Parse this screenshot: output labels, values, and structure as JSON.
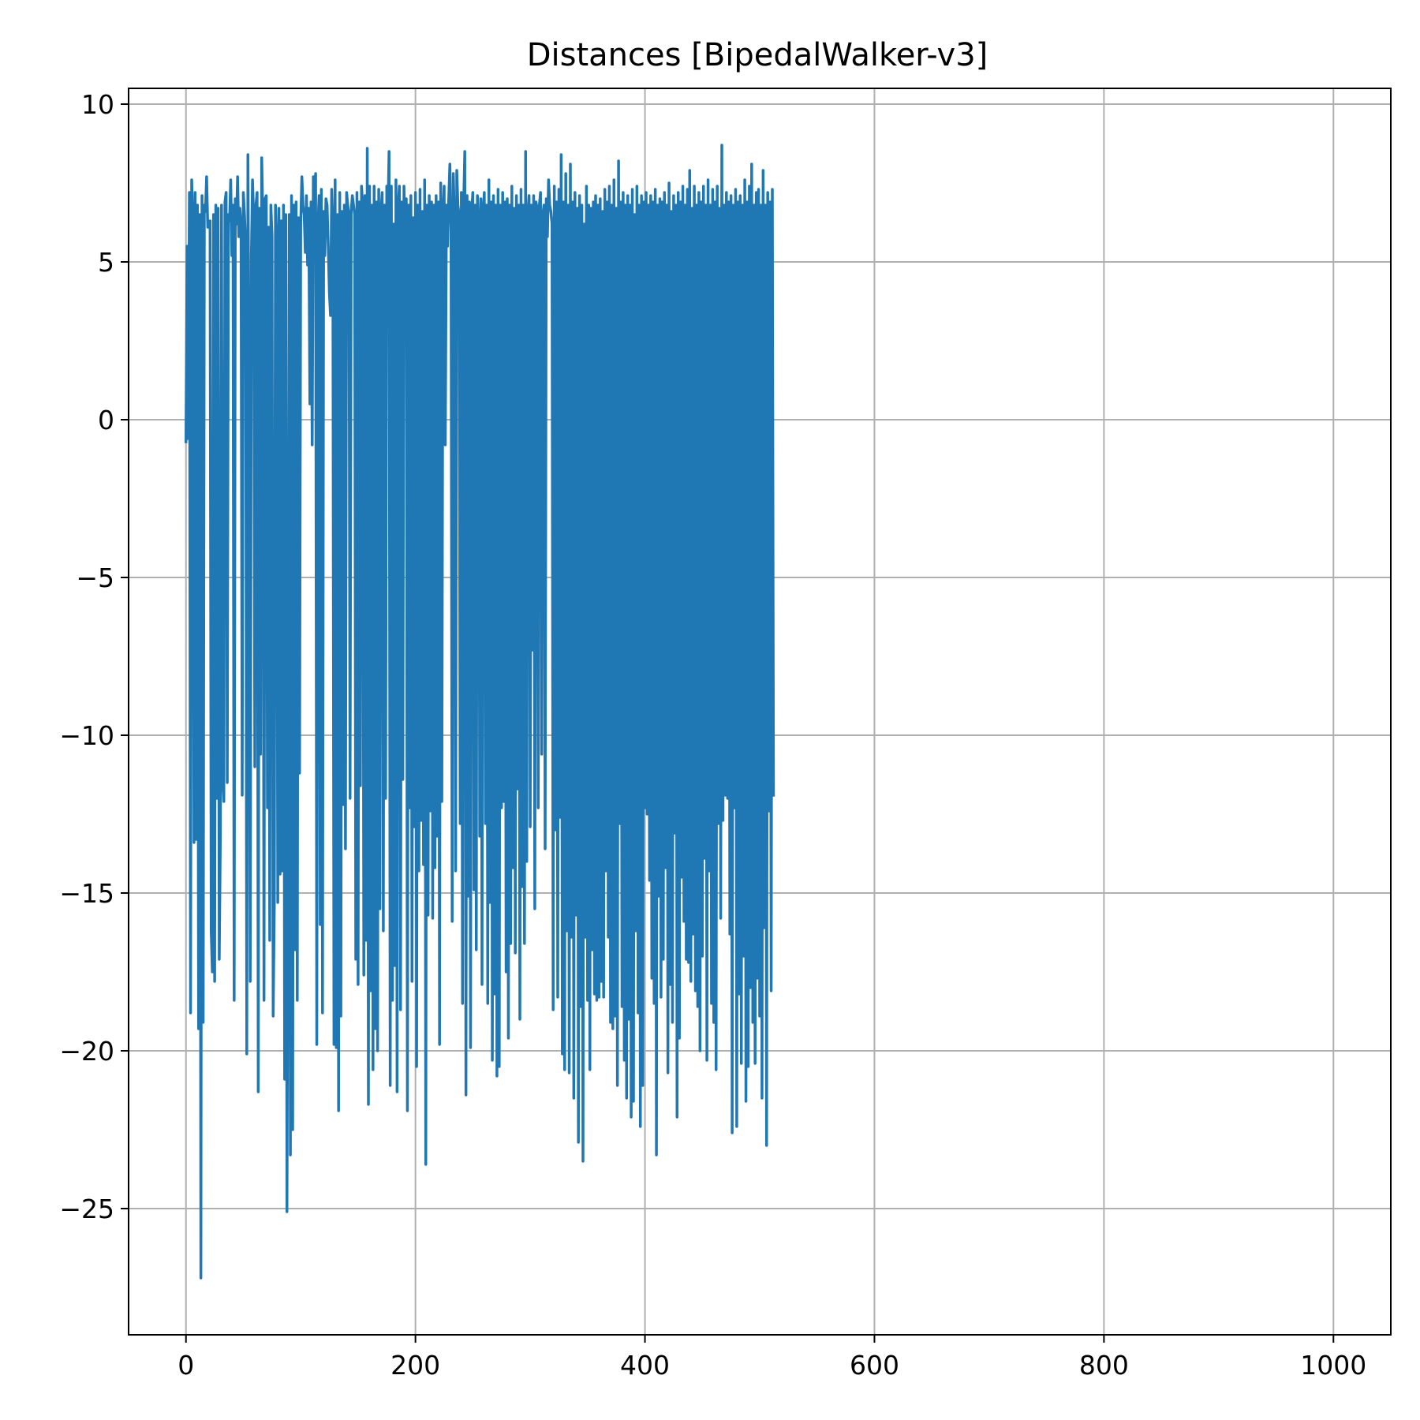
{
  "chart_data": {
    "type": "line",
    "title": "Distances [BipedalWalker-v3]",
    "xlabel": "",
    "ylabel": "",
    "xlim": [
      -50,
      1050
    ],
    "ylim": [
      -29,
      10.5
    ],
    "x_ticks": [
      0,
      200,
      400,
      600,
      800,
      1000
    ],
    "x_tick_labels": [
      "0",
      "200",
      "400",
      "600",
      "800",
      "1000"
    ],
    "y_ticks": [
      10,
      5,
      0,
      -5,
      -10,
      -15,
      -20,
      -25
    ],
    "y_tick_labels": [
      "10",
      "5",
      "0",
      "−5",
      "−10",
      "−15",
      "−20",
      "−25"
    ],
    "grid": true,
    "legend": "none",
    "colors": {
      "series": "#1f77b4",
      "grid": "#b0b0b0",
      "axes": "#000000"
    },
    "series": [
      {
        "x_start": 0,
        "x_step": 1,
        "values": [
          -0.7,
          5.5,
          -0.6,
          7.2,
          -18.8,
          7.6,
          6.3,
          -13.4,
          7.2,
          -13.3,
          6.8,
          -19.3,
          6.5,
          -27.2,
          7.1,
          -19.1,
          6.8,
          6.6,
          7.7,
          6.1,
          6.1,
          6.3,
          -16.2,
          -17.5,
          6.5,
          -17.8,
          6.8,
          -12.0,
          6.7,
          -17.1,
          -13.1,
          6.8,
          -11.4,
          -12.1,
          6.9,
          7.2,
          -11.5,
          6.5,
          6.3,
          7.6,
          5.2,
          6.8,
          -18.4,
          7.0,
          6.2,
          7.7,
          5.8,
          6.7,
          6.2,
          -11.9,
          7.2,
          6.5,
          5.5,
          -20.1,
          8.4,
          0.6,
          -17.8,
          5.2,
          7.6,
          6.4,
          -11.0,
          6.8,
          7.2,
          -21.3,
          6.7,
          -10.6,
          8.3,
          6.4,
          -18.4,
          7.0,
          7.1,
          -12.3,
          6.1,
          -16.5,
          6.8,
          5.8,
          -18.9,
          -15.3,
          6.8,
          5.6,
          -15.3,
          6.7,
          -14.4,
          6.3,
          -14.3,
          6.8,
          -20.9,
          6.5,
          -25.1,
          -13.4,
          6.5,
          -23.3,
          7.1,
          -22.5,
          6.8,
          -16.8,
          6.9,
          -18.4,
          6.4,
          -11.2,
          6.2,
          7.7,
          6.8,
          6.5,
          5.3,
          7.1,
          4.9,
          6.7,
          0.5,
          6.9,
          -0.8,
          7.7,
          6.5,
          7.8,
          -19.8,
          6.1,
          7.1,
          -16.0,
          7.3,
          -18.8,
          6.6,
          5.2,
          7.0,
          6.8,
          5.5,
          4.0,
          3.3,
          7.3,
          6.2,
          -19.8,
          7.6,
          -19.9,
          6.5,
          -21.9,
          7.2,
          -18.9,
          6.6,
          -12.2,
          6.8,
          -13.6,
          7.2,
          6.8,
          6.5,
          -12.0,
          6.6,
          7.1,
          6.8,
          6.5,
          -17.1,
          7.2,
          -17.9,
          6.9,
          -11.6,
          7.4,
          6.8,
          -17.6,
          7.1,
          -16.5,
          8.6,
          -21.7,
          7.4,
          -18.1,
          6.8,
          -20.6,
          7.4,
          -19.3,
          6.9,
          -20.0,
          7.3,
          -15.5,
          6.6,
          7.2,
          -16.2,
          6.8,
          -12.0,
          7.4,
          6.5,
          8.5,
          -21.1,
          7.4,
          -18.4,
          6.2,
          -17.3,
          7.6,
          -21.3,
          6.8,
          7.4,
          -18.7,
          6.9,
          -11.4,
          7.4,
          5.2,
          7.0,
          -21.9,
          6.8,
          -12.3,
          7.1,
          -17.8,
          6.4,
          -12.9,
          7.2,
          -20.5,
          6.8,
          -14.3,
          7.3,
          -12.7,
          6.6,
          -14.1,
          7.6,
          -23.6,
          6.8,
          -15.7,
          7.1,
          -12.4,
          6.9,
          -15.8,
          6.8,
          -14.2,
          7.1,
          -13.2,
          6.9,
          -19.8,
          7.5,
          -12.1,
          6.6,
          7.4,
          -0.8,
          6.8,
          5.5,
          7.0,
          8.1,
          6.1,
          -15.9,
          7.8,
          6.3,
          -14.3,
          7.9,
          6.8,
          6.5,
          -12.8,
          7.2,
          -18.5,
          6.8,
          8.5,
          -21.4,
          7.1,
          -15.1,
          6.9,
          -19.9,
          6.6,
          7.2,
          -14.9,
          6.8,
          -16.8,
          7.1,
          6.3,
          -13.2,
          7.0,
          -17.9,
          6.6,
          7.2,
          -12.8,
          6.8,
          -18.5,
          7.6,
          -15.3,
          6.9,
          -20.3,
          7.1,
          -18.2,
          6.8,
          -20.8,
          7.3,
          -20.5,
          6.8,
          -12.3,
          7.2,
          -12.1,
          6.9,
          -17.5,
          7.0,
          -19.6,
          6.8,
          -16.6,
          7.4,
          -14.2,
          6.7,
          -16.9,
          7.1,
          -11.7,
          6.8,
          -19.0,
          7.3,
          -14.8,
          6.8,
          -16.6,
          8.5,
          -14.0,
          6.5,
          7.1,
          -12.9,
          6.8,
          -7.3,
          7.1,
          -15.5,
          6.9,
          6.7,
          -12.3,
          6.8,
          7.2,
          -10.6,
          6.5,
          6.8,
          -13.6,
          7.0,
          5.8,
          7.6,
          6.8,
          6.6,
          6.2,
          -18.7,
          7.4,
          -13.0,
          6.9,
          -18.3,
          7.3,
          -12.6,
          8.4,
          -20.1,
          6.9,
          -20.6,
          7.8,
          -16.2,
          6.8,
          -20.7,
          8.1,
          -16.4,
          6.9,
          -21.5,
          7.2,
          -15.7,
          6.7,
          -22.9,
          7.1,
          -18.6,
          6.8,
          -23.5,
          6.2,
          -16.4,
          7.4,
          -18.4,
          6.8,
          -20.6,
          6.7,
          -16.8,
          6.9,
          -18.2,
          7.1,
          -18.4,
          6.8,
          -18.3,
          7.0,
          -17.8,
          6.6,
          -18.3,
          7.3,
          -14.3,
          6.9,
          -16.4,
          7.4,
          -19.1,
          6.8,
          -19.3,
          7.6,
          -18.9,
          6.7,
          -21.1,
          8.2,
          -12.8,
          6.9,
          -18.6,
          7.2,
          -20.3,
          6.8,
          -21.5,
          7.1,
          -19.0,
          6.8,
          -22.1,
          7.3,
          -21.6,
          6.5,
          -16.2,
          7.4,
          -18.8,
          6.8,
          -22.4,
          7.1,
          -21.1,
          6.9,
          -12.3,
          7.2,
          -12.5,
          6.8,
          -14.6,
          7.1,
          -17.7,
          6.9,
          -18.5,
          7.3,
          -23.3,
          6.8,
          -15.1,
          7.0,
          -18.3,
          6.9,
          -17.1,
          7.2,
          -14.2,
          6.8,
          -20.7,
          7.5,
          -17.9,
          6.6,
          -19.1,
          7.1,
          -13.1,
          6.8,
          -22.1,
          7.2,
          -19.6,
          6.9,
          -14.5,
          7.4,
          -15.9,
          6.8,
          -17.1,
          7.3,
          -17.2,
          7.9,
          -17.8,
          6.7,
          -16.3,
          7.4,
          -18.1,
          6.8,
          -18.6,
          7.2,
          -20.0,
          6.9,
          -17.0,
          7.4,
          -13.9,
          6.8,
          -20.3,
          7.6,
          -14.3,
          6.8,
          -18.5,
          7.3,
          -19.1,
          6.9,
          -20.6,
          7.4,
          -12.8,
          6.7,
          -15.8,
          8.7,
          -12.7,
          6.8,
          -11.9,
          7.2,
          -12.0,
          6.9,
          -16.3,
          7.1,
          -22.6,
          6.8,
          -12.3,
          7.3,
          -22.4,
          6.9,
          -18.2,
          7.1,
          -20.4,
          6.8,
          -17.0,
          7.6,
          -21.6,
          6.9,
          -20.5,
          7.4,
          -18.0,
          8.1,
          -19.1,
          6.8,
          -20.4,
          7.2,
          -17.7,
          7.3,
          -18.9,
          6.8,
          -21.5,
          7.9,
          -16.1,
          6.8,
          -23.0,
          7.2,
          -12.4,
          6.9,
          -18.1,
          7.3,
          -11.9
        ]
      }
    ]
  }
}
